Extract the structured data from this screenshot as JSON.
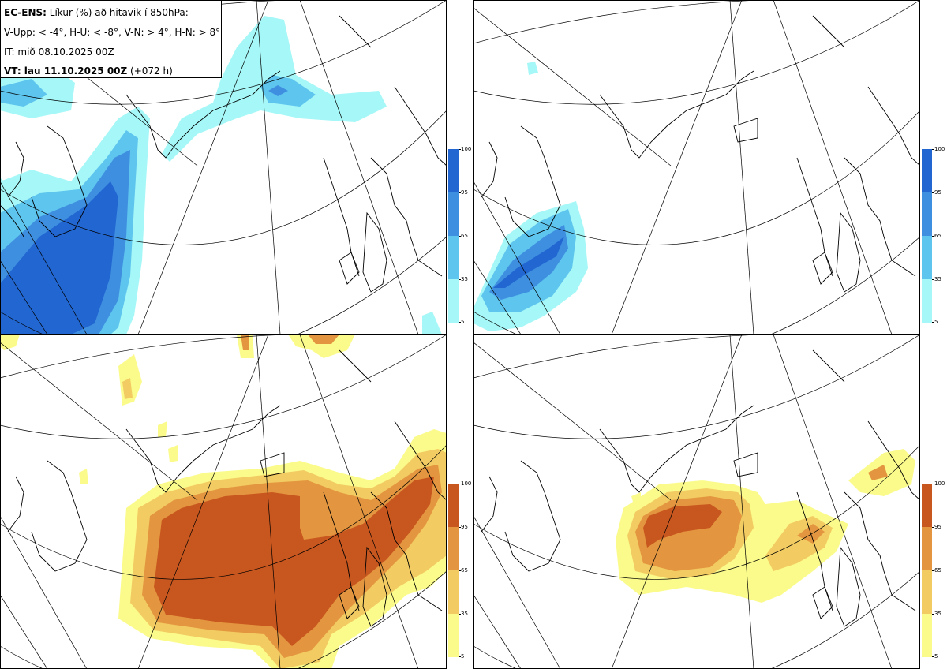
{
  "header": {
    "line1_bold": "EC-ENS:",
    "line1_rest": " Líkur (%) að hitavik í 850hPa:",
    "line2": "V-Upp: < -4°, H-U: < -8°, V-N: > 4°, H-N: > 8°",
    "line3": "IT: mið 08.10.2025 00Z",
    "line4_bold": "VT: lau 11.10.2025 00Z",
    "line4_rest": " (+072 h)"
  },
  "panels": [
    {
      "id": "V-Upp",
      "threshold": "< -4°",
      "colorscale": "blue"
    },
    {
      "id": "H-U",
      "threshold": "< -8°",
      "colorscale": "blue"
    },
    {
      "id": "V-N",
      "threshold": "> 4°",
      "colorscale": "orange"
    },
    {
      "id": "H-N",
      "threshold": "> 8°",
      "colorscale": "orange"
    }
  ],
  "colorbar": {
    "ticks": [
      "100",
      "95",
      "65",
      "35",
      "5"
    ],
    "blue_colors": [
      "#2166d1",
      "#3f8fe0",
      "#5ec5ee",
      "#a6f7f7"
    ],
    "orange_colors": [
      "#c8561f",
      "#e3963f",
      "#f2cc62",
      "#fbfb8c"
    ]
  }
}
